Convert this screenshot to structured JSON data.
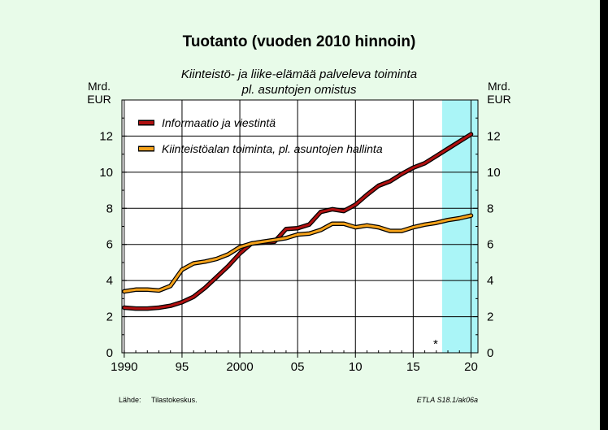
{
  "chart_data": {
    "type": "line",
    "title": "Tuotanto (vuoden 2010 hinnoin)",
    "subtitle_line1": "Kiinteistö- ja liike-elämää palveleva toiminta",
    "subtitle_line2": "pl. asuntojen omistus",
    "unit_left_line1": "Mrd.",
    "unit_left_line2": "EUR",
    "unit_right_line1": "Mrd.",
    "unit_right_line2": "EUR",
    "x_ticks": [
      "1990",
      "95",
      "2000",
      "05",
      "10",
      "15",
      "20"
    ],
    "y_ticks": [
      "0",
      "2",
      "4",
      "6",
      "8",
      "10",
      "12"
    ],
    "xlim": [
      1989.8,
      2020.6
    ],
    "ylim": [
      0,
      14
    ],
    "forecast_start": 2017.5,
    "forecast_marker": "*",
    "grid": true,
    "legend_position": "top-left",
    "colors": {
      "forecast_band": "#aaf5f7",
      "plot_bg": "#ffffff",
      "panel_bg": "#e8fbe9"
    },
    "x": [
      1990,
      1991,
      1992,
      1993,
      1994,
      1995,
      1996,
      1997,
      1998,
      1999,
      2000,
      2001,
      2002,
      2003,
      2004,
      2005,
      2006,
      2007,
      2008,
      2009,
      2010,
      2011,
      2012,
      2013,
      2014,
      2015,
      2016,
      2017,
      2018,
      2019,
      2020
    ],
    "series": [
      {
        "name": "Informaatio ja viestintä",
        "color": "#b01010",
        "values": [
          2.5,
          2.45,
          2.45,
          2.5,
          2.6,
          2.8,
          3.1,
          3.6,
          4.2,
          4.8,
          5.5,
          6.05,
          6.1,
          6.15,
          6.85,
          6.9,
          7.1,
          7.8,
          7.95,
          7.85,
          8.2,
          8.75,
          9.25,
          9.5,
          9.9,
          10.25,
          10.5,
          10.9,
          11.3,
          11.7,
          12.1
        ]
      },
      {
        "name": "Kiinteistöalan toiminta, pl. asuntojen hallinta",
        "color": "#f5a21a",
        "values": [
          3.4,
          3.5,
          3.5,
          3.45,
          3.7,
          4.6,
          4.95,
          5.05,
          5.2,
          5.45,
          5.85,
          6.05,
          6.15,
          6.25,
          6.35,
          6.55,
          6.6,
          6.8,
          7.15,
          7.15,
          6.95,
          7.05,
          6.95,
          6.75,
          6.75,
          6.95,
          7.1,
          7.2,
          7.35,
          7.45,
          7.6
        ]
      }
    ]
  },
  "footer": {
    "source_label": "Lähde:",
    "source_value": "Tilastokeskus.",
    "code": "ETLA S18.1/ak06a"
  }
}
